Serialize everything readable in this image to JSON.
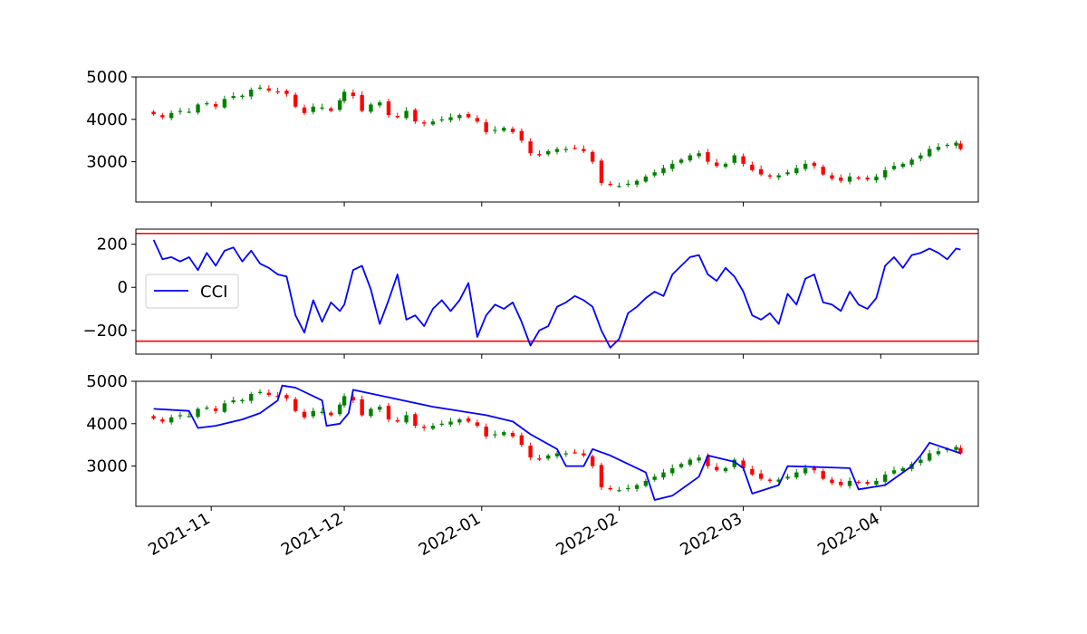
{
  "colors": {
    "up": "#008000",
    "down": "#ff0000",
    "cci_line": "#0000ff",
    "threshold": "#ff0000",
    "frame": "#000000",
    "background": "#ffffff"
  },
  "chart_data": [
    {
      "type": "candlestick",
      "panel": "price",
      "title": "",
      "xlabel": "",
      "ylabel": "",
      "ylim": [
        2050,
        5000
      ],
      "yticks": [
        3000,
        4000,
        5000
      ],
      "x_date_range": [
        "2021-10-19",
        "2022-04-19"
      ],
      "grid": false,
      "closes": [
        [
          "2021-10-19",
          4120
        ],
        [
          "2021-10-21",
          4050
        ],
        [
          "2021-10-23",
          4150
        ],
        [
          "2021-10-25",
          4200
        ],
        [
          "2021-10-27",
          4180
        ],
        [
          "2021-10-29",
          4350
        ],
        [
          "2021-10-31",
          4380
        ],
        [
          "2021-11-02",
          4300
        ],
        [
          "2021-11-04",
          4480
        ],
        [
          "2021-11-06",
          4550
        ],
        [
          "2021-11-08",
          4560
        ],
        [
          "2021-11-10",
          4700
        ],
        [
          "2021-11-12",
          4750
        ],
        [
          "2021-11-14",
          4680
        ],
        [
          "2021-11-16",
          4650
        ],
        [
          "2021-11-18",
          4600
        ],
        [
          "2021-11-20",
          4300
        ],
        [
          "2021-11-22",
          4150
        ],
        [
          "2021-11-24",
          4300
        ],
        [
          "2021-11-26",
          4280
        ],
        [
          "2021-11-28",
          4200
        ],
        [
          "2021-11-30",
          4450
        ],
        [
          "2021-12-01",
          4650
        ],
        [
          "2021-12-03",
          4550
        ],
        [
          "2021-12-05",
          4200
        ],
        [
          "2021-12-07",
          4350
        ],
        [
          "2021-12-09",
          4400
        ],
        [
          "2021-12-11",
          4100
        ],
        [
          "2021-12-13",
          4050
        ],
        [
          "2021-12-15",
          4200
        ],
        [
          "2021-12-17",
          3950
        ],
        [
          "2021-12-19",
          3900
        ],
        [
          "2021-12-21",
          3950
        ],
        [
          "2021-12-23",
          4000
        ],
        [
          "2021-12-25",
          4050
        ],
        [
          "2021-12-27",
          4100
        ],
        [
          "2021-12-29",
          4050
        ],
        [
          "2021-12-31",
          3950
        ],
        [
          "2022-01-02",
          3700
        ],
        [
          "2022-01-04",
          3750
        ],
        [
          "2022-01-06",
          3800
        ],
        [
          "2022-01-08",
          3700
        ],
        [
          "2022-01-10",
          3500
        ],
        [
          "2022-01-12",
          3200
        ],
        [
          "2022-01-14",
          3150
        ],
        [
          "2022-01-16",
          3250
        ],
        [
          "2022-01-18",
          3300
        ],
        [
          "2022-01-20",
          3300
        ],
        [
          "2022-01-22",
          3320
        ],
        [
          "2022-01-24",
          3250
        ],
        [
          "2022-01-26",
          3000
        ],
        [
          "2022-01-28",
          2500
        ],
        [
          "2022-01-30",
          2450
        ],
        [
          "2022-02-01",
          2430
        ],
        [
          "2022-02-03",
          2480
        ],
        [
          "2022-02-05",
          2550
        ],
        [
          "2022-02-07",
          2650
        ],
        [
          "2022-02-09",
          2750
        ],
        [
          "2022-02-11",
          2850
        ],
        [
          "2022-02-13",
          2950
        ],
        [
          "2022-02-15",
          3050
        ],
        [
          "2022-02-17",
          3150
        ],
        [
          "2022-02-19",
          3200
        ],
        [
          "2022-02-21",
          3000
        ],
        [
          "2022-02-23",
          2900
        ],
        [
          "2022-02-25",
          2950
        ],
        [
          "2022-02-27",
          3150
        ],
        [
          "2022-03-01",
          2950
        ],
        [
          "2022-03-03",
          2800
        ],
        [
          "2022-03-05",
          2700
        ],
        [
          "2022-03-07",
          2650
        ],
        [
          "2022-03-09",
          2680
        ],
        [
          "2022-03-11",
          2750
        ],
        [
          "2022-03-13",
          2850
        ],
        [
          "2022-03-15",
          2950
        ],
        [
          "2022-03-17",
          2900
        ],
        [
          "2022-03-19",
          2700
        ],
        [
          "2022-03-21",
          2600
        ],
        [
          "2022-03-23",
          2550
        ],
        [
          "2022-03-25",
          2650
        ],
        [
          "2022-03-27",
          2600
        ],
        [
          "2022-03-29",
          2580
        ],
        [
          "2022-03-31",
          2650
        ],
        [
          "2022-04-02",
          2800
        ],
        [
          "2022-04-04",
          2900
        ],
        [
          "2022-04-06",
          2950
        ],
        [
          "2022-04-08",
          3050
        ],
        [
          "2022-04-10",
          3150
        ],
        [
          "2022-04-12",
          3300
        ],
        [
          "2022-04-14",
          3350
        ],
        [
          "2022-04-16",
          3400
        ],
        [
          "2022-04-18",
          3450
        ],
        [
          "2022-04-19",
          3300
        ]
      ]
    },
    {
      "type": "line",
      "panel": "cci",
      "title": "",
      "xlabel": "",
      "ylabel": "",
      "ylim": [
        -310,
        270
      ],
      "yticks": [
        -200,
        0,
        200
      ],
      "legend": {
        "entries": [
          "CCI"
        ],
        "placement": "center-left"
      },
      "hlines": [
        250,
        -250
      ],
      "grid": false,
      "series": [
        {
          "name": "CCI",
          "points": [
            [
              "2021-10-19",
              220
            ],
            [
              "2021-10-21",
              130
            ],
            [
              "2021-10-23",
              140
            ],
            [
              "2021-10-25",
              120
            ],
            [
              "2021-10-27",
              140
            ],
            [
              "2021-10-29",
              80
            ],
            [
              "2021-10-31",
              160
            ],
            [
              "2021-11-02",
              100
            ],
            [
              "2021-11-04",
              170
            ],
            [
              "2021-11-06",
              185
            ],
            [
              "2021-11-08",
              120
            ],
            [
              "2021-11-10",
              170
            ],
            [
              "2021-11-12",
              110
            ],
            [
              "2021-11-14",
              90
            ],
            [
              "2021-11-16",
              60
            ],
            [
              "2021-11-18",
              50
            ],
            [
              "2021-11-20",
              -130
            ],
            [
              "2021-11-22",
              -210
            ],
            [
              "2021-11-24",
              -60
            ],
            [
              "2021-11-26",
              -160
            ],
            [
              "2021-11-28",
              -70
            ],
            [
              "2021-11-30",
              -110
            ],
            [
              "2021-12-01",
              -80
            ],
            [
              "2021-12-03",
              80
            ],
            [
              "2021-12-05",
              100
            ],
            [
              "2021-12-07",
              -10
            ],
            [
              "2021-12-09",
              -170
            ],
            [
              "2021-12-11",
              -60
            ],
            [
              "2021-12-13",
              60
            ],
            [
              "2021-12-15",
              -150
            ],
            [
              "2021-12-17",
              -130
            ],
            [
              "2021-12-19",
              -180
            ],
            [
              "2021-12-21",
              -100
            ],
            [
              "2021-12-23",
              -60
            ],
            [
              "2021-12-25",
              -110
            ],
            [
              "2021-12-27",
              -60
            ],
            [
              "2021-12-29",
              20
            ],
            [
              "2021-12-31",
              -230
            ],
            [
              "2022-01-02",
              -130
            ],
            [
              "2022-01-04",
              -80
            ],
            [
              "2022-01-06",
              -100
            ],
            [
              "2022-01-08",
              -70
            ],
            [
              "2022-01-10",
              -160
            ],
            [
              "2022-01-12",
              -270
            ],
            [
              "2022-01-14",
              -200
            ],
            [
              "2022-01-16",
              -180
            ],
            [
              "2022-01-18",
              -90
            ],
            [
              "2022-01-20",
              -70
            ],
            [
              "2022-01-22",
              -40
            ],
            [
              "2022-01-24",
              -60
            ],
            [
              "2022-01-26",
              -90
            ],
            [
              "2022-01-28",
              -200
            ],
            [
              "2022-01-30",
              -280
            ],
            [
              "2022-02-01",
              -240
            ],
            [
              "2022-02-03",
              -120
            ],
            [
              "2022-02-05",
              -90
            ],
            [
              "2022-02-07",
              -50
            ],
            [
              "2022-02-09",
              -20
            ],
            [
              "2022-02-11",
              -40
            ],
            [
              "2022-02-13",
              60
            ],
            [
              "2022-02-15",
              100
            ],
            [
              "2022-02-17",
              140
            ],
            [
              "2022-02-19",
              150
            ],
            [
              "2022-02-21",
              60
            ],
            [
              "2022-02-23",
              30
            ],
            [
              "2022-02-25",
              90
            ],
            [
              "2022-02-27",
              50
            ],
            [
              "2022-03-01",
              -20
            ],
            [
              "2022-03-03",
              -130
            ],
            [
              "2022-03-05",
              -150
            ],
            [
              "2022-03-07",
              -120
            ],
            [
              "2022-03-09",
              -170
            ],
            [
              "2022-03-11",
              -30
            ],
            [
              "2022-03-13",
              -80
            ],
            [
              "2022-03-15",
              40
            ],
            [
              "2022-03-17",
              60
            ],
            [
              "2022-03-19",
              -70
            ],
            [
              "2022-03-21",
              -80
            ],
            [
              "2022-03-23",
              -110
            ],
            [
              "2022-03-25",
              -20
            ],
            [
              "2022-03-27",
              -80
            ],
            [
              "2022-03-29",
              -100
            ],
            [
              "2022-03-31",
              -50
            ],
            [
              "2022-04-02",
              100
            ],
            [
              "2022-04-04",
              140
            ],
            [
              "2022-04-06",
              90
            ],
            [
              "2022-04-08",
              150
            ],
            [
              "2022-04-10",
              160
            ],
            [
              "2022-04-12",
              180
            ],
            [
              "2022-04-14",
              160
            ],
            [
              "2022-04-16",
              130
            ],
            [
              "2022-04-18",
              180
            ],
            [
              "2022-04-19",
              175
            ]
          ]
        }
      ]
    },
    {
      "type": "candlestick",
      "panel": "price-with-stop",
      "title": "",
      "xlabel": "",
      "ylabel": "",
      "ylim": [
        2050,
        5000
      ],
      "yticks": [
        3000,
        4000,
        5000
      ],
      "xticks": [
        "2021-11",
        "2021-12",
        "2022-01",
        "2022-02",
        "2022-03",
        "2022-04"
      ],
      "grid": false,
      "overlay_series": [
        {
          "points": [
            [
              "2021-10-19",
              4350
            ],
            [
              "2021-10-27",
              4300
            ],
            [
              "2021-10-29",
              3900
            ],
            [
              "2021-11-02",
              3950
            ],
            [
              "2021-11-08",
              4100
            ],
            [
              "2021-11-12",
              4250
            ],
            [
              "2021-11-16",
              4550
            ],
            [
              "2021-11-17",
              4900
            ],
            [
              "2021-11-20",
              4850
            ],
            [
              "2021-11-26",
              4550
            ],
            [
              "2021-11-27",
              3950
            ],
            [
              "2021-11-30",
              4000
            ],
            [
              "2021-12-02",
              4250
            ],
            [
              "2021-12-03",
              4800
            ],
            [
              "2021-12-21",
              4400
            ],
            [
              "2022-01-02",
              4200
            ],
            [
              "2022-01-08",
              4050
            ],
            [
              "2022-01-12",
              3750
            ],
            [
              "2022-01-18",
              3400
            ],
            [
              "2022-01-20",
              3000
            ],
            [
              "2022-01-24",
              3000
            ],
            [
              "2022-01-26",
              3400
            ],
            [
              "2022-01-30",
              3250
            ],
            [
              "2022-02-07",
              2850
            ],
            [
              "2022-02-09",
              2200
            ],
            [
              "2022-02-13",
              2300
            ],
            [
              "2022-02-19",
              2750
            ],
            [
              "2022-02-21",
              3250
            ],
            [
              "2022-02-27",
              3100
            ],
            [
              "2022-03-01",
              2950
            ],
            [
              "2022-03-03",
              2350
            ],
            [
              "2022-03-09",
              2550
            ],
            [
              "2022-03-11",
              3000
            ],
            [
              "2022-03-25",
              2950
            ],
            [
              "2022-03-27",
              2450
            ],
            [
              "2022-04-02",
              2550
            ],
            [
              "2022-04-08",
              3000
            ],
            [
              "2022-04-10",
              3250
            ],
            [
              "2022-04-12",
              3550
            ],
            [
              "2022-04-19",
              3300
            ]
          ]
        }
      ]
    }
  ]
}
